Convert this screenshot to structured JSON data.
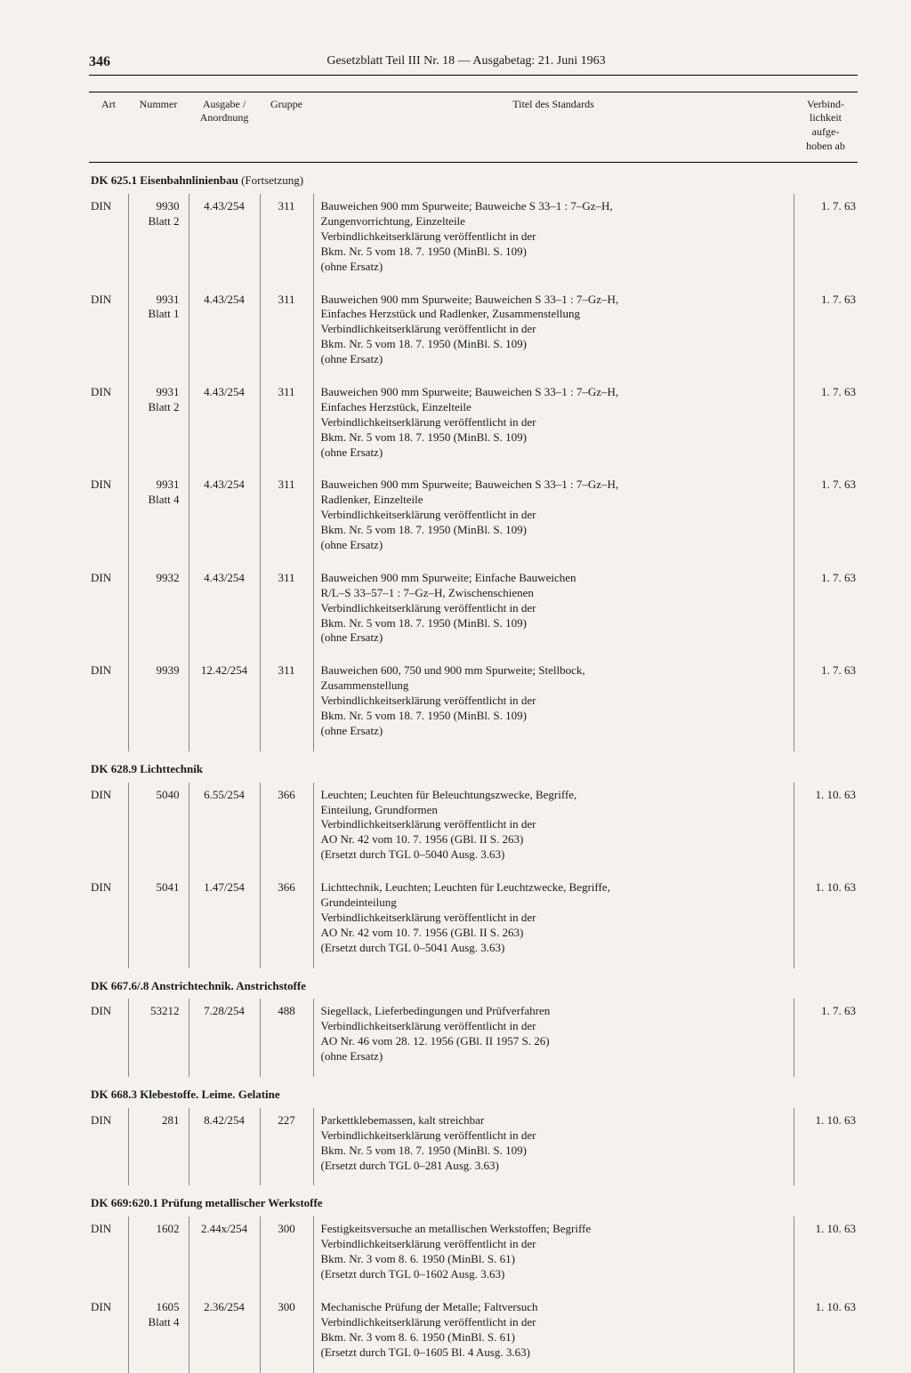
{
  "page_number": "346",
  "header": "Gesetzblatt Teil III Nr. 18 — Ausgabetag: 21. Juni 1963",
  "columns": {
    "art": "Art",
    "nummer": "Nummer",
    "ausgabe": "Ausgabe /\nAnordnung",
    "gruppe": "Gruppe",
    "titel": "Titel des Standards",
    "verb": "Verbind-\nlichkeit\naufge-\nhoben ab"
  },
  "sections": [
    {
      "heading_bold": "DK 625.1 Eisenbahnlinienbau",
      "heading_rest": " (Fortsetzung)",
      "rows": [
        {
          "art": "DIN",
          "nummer": "9930\nBlatt 2",
          "ausgabe": "4.43/254",
          "gruppe": "311",
          "titel": "Bauweichen 900 mm Spurweite; Bauweiche S 33–1 : 7–Gz–H,\nZungenvorrichtung, Einzelteile\nVerbindlichkeitserklärung veröffentlicht in der\nBkm. Nr. 5 vom 18. 7. 1950 (MinBl. S. 109)\n(ohne Ersatz)",
          "verb": "1.  7. 63"
        },
        {
          "art": "DIN",
          "nummer": "9931\nBlatt 1",
          "ausgabe": "4.43/254",
          "gruppe": "311",
          "titel": "Bauweichen 900 mm Spurweite; Bauweichen S 33–1 : 7–Gz–H,\nEinfaches Herzstück und Radlenker, Zusammenstellung\nVerbindlichkeitserklärung veröffentlicht in der\nBkm. Nr. 5 vom 18. 7. 1950 (MinBl. S. 109)\n(ohne Ersatz)",
          "verb": "1.  7. 63"
        },
        {
          "art": "DIN",
          "nummer": "9931\nBlatt 2",
          "ausgabe": "4.43/254",
          "gruppe": "311",
          "titel": "Bauweichen 900 mm Spurweite; Bauweichen S 33–1 : 7–Gz–H,\nEinfaches Herzstück, Einzelteile\nVerbindlichkeitserklärung veröffentlicht in der\nBkm. Nr. 5 vom 18. 7. 1950 (MinBl. S. 109)\n(ohne Ersatz)",
          "verb": "1.  7. 63"
        },
        {
          "art": "DIN",
          "nummer": "9931\nBlatt 4",
          "ausgabe": "4.43/254",
          "gruppe": "311",
          "titel": "Bauweichen 900 mm Spurweite; Bauweichen S 33–1 : 7–Gz–H,\nRadlenker, Einzelteile\nVerbindlichkeitserklärung veröffentlicht in der\nBkm. Nr. 5 vom 18. 7. 1950 (MinBl. S. 109)\n(ohne Ersatz)",
          "verb": "1.  7. 63"
        },
        {
          "art": "DIN",
          "nummer": "9932",
          "ausgabe": "4.43/254",
          "gruppe": "311",
          "titel": "Bauweichen 900 mm Spurweite; Einfache Bauweichen\nR/L–S 33–57–1 : 7–Gz–H, Zwischenschienen\nVerbindlichkeitserklärung veröffentlicht in der\nBkm. Nr. 5 vom 18. 7. 1950 (MinBl. S. 109)\n(ohne Ersatz)",
          "verb": "1.  7. 63"
        },
        {
          "art": "DIN",
          "nummer": "9939",
          "ausgabe": "12.42/254",
          "gruppe": "311",
          "titel": "Bauweichen 600, 750 und 900 mm Spurweite; Stellbock,\nZusammenstellung\nVerbindlichkeitserklärung veröffentlicht in der\nBkm. Nr. 5 vom 18. 7. 1950 (MinBl. S. 109)\n(ohne Ersatz)",
          "verb": "1.  7. 63"
        }
      ]
    },
    {
      "heading_bold": "DK 628.9 Lichttechnik",
      "heading_rest": "",
      "rows": [
        {
          "art": "DIN",
          "nummer": "5040",
          "ausgabe": "6.55/254",
          "gruppe": "366",
          "titel": "Leuchten; Leuchten für Beleuchtungszwecke, Begriffe,\nEinteilung, Grundformen\nVerbindlichkeitserklärung veröffentlicht in der\nAO Nr. 42 vom 10. 7. 1956 (GBl. II S. 263)\n(Ersetzt durch TGL 0–5040 Ausg. 3.63)",
          "verb": "1. 10. 63"
        },
        {
          "art": "DIN",
          "nummer": "5041",
          "ausgabe": "1.47/254",
          "gruppe": "366",
          "titel": "Lichttechnik, Leuchten; Leuchten für Leuchtzwecke, Begriffe,\nGrundeinteilung\nVerbindlichkeitserklärung veröffentlicht in der\nAO Nr. 42 vom 10. 7. 1956 (GBl. II S. 263)\n(Ersetzt durch TGL 0–5041 Ausg. 3.63)",
          "verb": "1. 10. 63"
        }
      ]
    },
    {
      "heading_bold": "DK 667.6/.8 Anstrichtechnik. Anstrichstoffe",
      "heading_rest": "",
      "rows": [
        {
          "art": "DIN",
          "nummer": "53212",
          "ausgabe": "7.28/254",
          "gruppe": "488",
          "titel": "Siegellack, Lieferbedingungen und Prüfverfahren\nVerbindlichkeitserklärung veröffentlicht in der\nAO Nr. 46 vom 28. 12. 1956 (GBl. II 1957 S. 26)\n(ohne Ersatz)",
          "verb": "1.  7. 63"
        }
      ]
    },
    {
      "heading_bold": "DK 668.3 Klebestoffe. Leime. Gelatine",
      "heading_rest": "",
      "rows": [
        {
          "art": "DIN",
          "nummer": "281",
          "ausgabe": "8.42/254",
          "gruppe": "227",
          "titel": "Parkettklebemassen, kalt streichbar\nVerbindlichkeitserklärung veröffentlicht in der\nBkm. Nr. 5 vom 18. 7. 1950 (MinBl. S. 109)\n(Ersetzt durch TGL 0–281 Ausg. 3.63)",
          "verb": "1. 10. 63"
        }
      ]
    },
    {
      "heading_bold": "DK 669:620.1 Prüfung metallischer Werkstoffe",
      "heading_rest": "",
      "rows": [
        {
          "art": "DIN",
          "nummer": "1602",
          "ausgabe": "2.44x/254",
          "gruppe": "300",
          "titel": "Festigkeitsversuche an metallischen Werkstoffen; Begriffe\nVerbindlichkeitserklärung veröffentlicht in der\nBkm. Nr. 3 vom 8. 6. 1950 (MinBl. S. 61)\n(Ersetzt durch TGL 0–1602 Ausg. 3.63)",
          "verb": "1. 10. 63"
        },
        {
          "art": "DIN",
          "nummer": "1605\nBlatt 4",
          "ausgabe": "2.36/254",
          "gruppe": "300",
          "titel": "Mechanische Prüfung der Metalle; Faltversuch\nVerbindlichkeitserklärung veröffentlicht in der\nBkm. Nr. 3 vom 8. 6. 1950 (MinBl. S. 61)\n(Ersetzt durch TGL 0–1605 Bl. 4 Ausg. 3.63)",
          "verb": "1. 10. 63"
        }
      ]
    }
  ]
}
